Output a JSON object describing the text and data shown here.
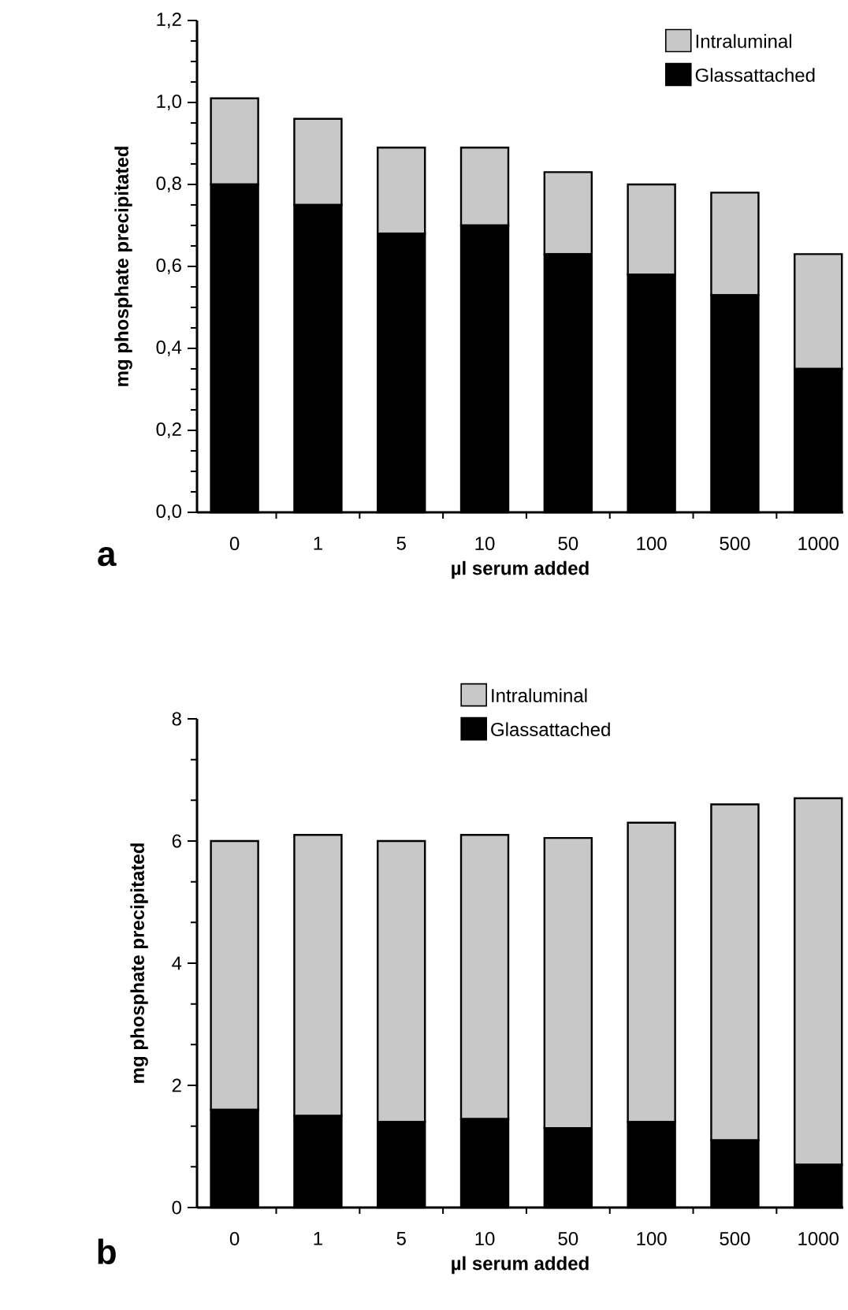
{
  "chart_data": [
    {
      "type": "bar",
      "stacked": true,
      "xlabel": "µl serum added",
      "ylabel": "mg phosphate precipitated",
      "annotations": [
        "a"
      ],
      "categories": [
        "0",
        "1",
        "5",
        "10",
        "50",
        "100",
        "500",
        "1000"
      ],
      "series": [
        {
          "name": "Glassattached",
          "color": "#000000",
          "values": [
            0.8,
            0.75,
            0.68,
            0.7,
            0.63,
            0.58,
            0.53,
            0.35
          ]
        },
        {
          "name": "Intraluminal",
          "color": "#c8c8c8",
          "values": [
            0.21,
            0.21,
            0.21,
            0.19,
            0.2,
            0.22,
            0.25,
            0.28
          ]
        }
      ],
      "ylim": [
        0,
        1.2
      ],
      "yticks": [
        {
          "value": 0,
          "label": "0,0"
        },
        {
          "value": 0.2,
          "label": "0,2"
        },
        {
          "value": 0.4,
          "label": "0,4"
        },
        {
          "value": 0.6,
          "label": "0,6"
        },
        {
          "value": 0.8,
          "label": "0,8"
        },
        {
          "value": 1.0,
          "label": "1,0"
        },
        {
          "value": 1.2,
          "label": "1,2"
        }
      ],
      "legend": "top right",
      "grid": false
    },
    {
      "type": "bar",
      "stacked": true,
      "xlabel": "µl serum added",
      "ylabel": "mg phosphate precipitated",
      "annotations": [
        "b"
      ],
      "categories": [
        "0",
        "1",
        "5",
        "10",
        "50",
        "100",
        "500",
        "1000"
      ],
      "series": [
        {
          "name": "Glassattached",
          "color": "#000000",
          "values": [
            1.6,
            1.5,
            1.4,
            1.45,
            1.3,
            1.4,
            1.1,
            0.7
          ]
        },
        {
          "name": "Intraluminal",
          "color": "#c8c8c8",
          "values": [
            4.4,
            4.6,
            4.6,
            4.65,
            4.75,
            4.9,
            5.5,
            6.0
          ]
        }
      ],
      "ylim": [
        0,
        8
      ],
      "yticks": [
        0,
        2,
        4,
        6,
        8
      ],
      "legend": "top left",
      "grid": false
    }
  ]
}
